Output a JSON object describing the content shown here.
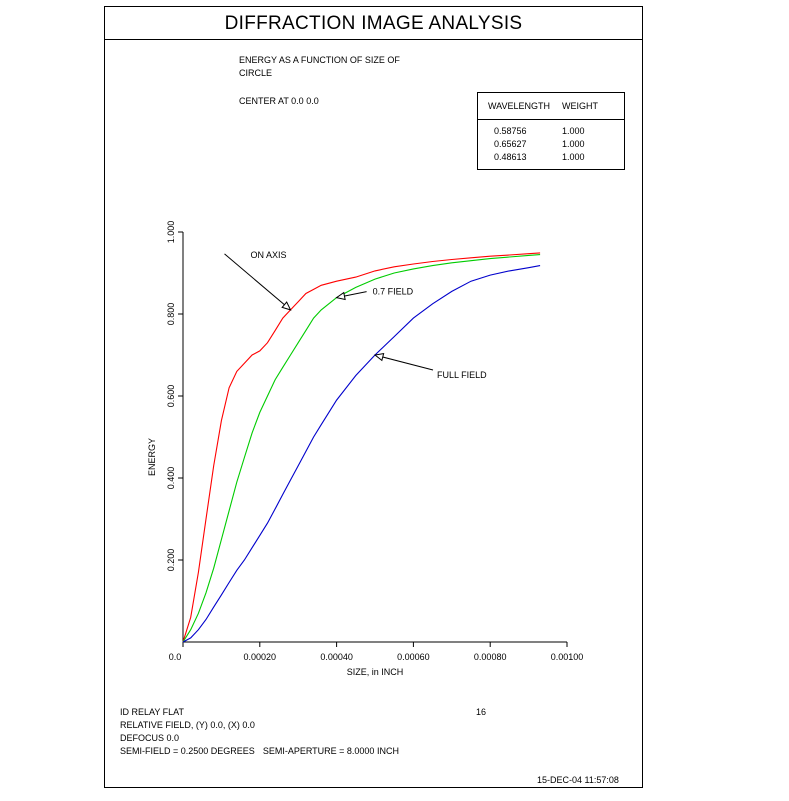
{
  "header": {
    "title": "DIFFRACTION IMAGE ANALYSIS"
  },
  "subtitle": {
    "line1": "ENERGY AS A FUNCTION OF SIZE OF",
    "line2": "CIRCLE",
    "center": "CENTER AT  0.0 0.0"
  },
  "wavelength_table": {
    "headers": [
      "WAVELENGTH",
      "WEIGHT"
    ],
    "rows": [
      {
        "wavelength": "0.58756",
        "weight": "1.000"
      },
      {
        "wavelength": "0.65627",
        "weight": "1.000"
      },
      {
        "wavelength": "0.48613",
        "weight": "1.000"
      }
    ]
  },
  "footer": {
    "system": "ID RELAY FLAT",
    "page": "16",
    "relative_field": "RELATIVE FIELD, (Y)  0.0, (X)  0.0",
    "defocus": "DEFOCUS  0.0",
    "semi_field": "SEMI-FIELD =  0.2500 DEGREES",
    "semi_aperture": "SEMI-APERTURE =  8.0000 INCH",
    "date": "15-DEC-04  11:57:08"
  },
  "colors": {
    "on_axis": "#ff0000",
    "field_07": "#00cc00",
    "full_field": "#0000cc",
    "axis": "#000000"
  },
  "chart_data": {
    "type": "line",
    "xlabel": "SIZE, in INCH",
    "ylabel": "ENERGY",
    "xlim": [
      0,
      0.001
    ],
    "ylim": [
      0,
      1.0
    ],
    "x_ticks": [
      0.0,
      0.0002,
      0.0004,
      0.0006,
      0.0008,
      0.001
    ],
    "x_tick_labels": [
      "0.0",
      "0.00020",
      "0.00040",
      "0.00060",
      "0.00080",
      "0.00100"
    ],
    "y_ticks": [
      0.2,
      0.4,
      0.6,
      0.8,
      1.0
    ],
    "y_tick_labels": [
      "0.200",
      "0.400",
      "0.600",
      "0.800",
      "1.000"
    ],
    "series": [
      {
        "name": "ON AXIS",
        "color": "#ff0000",
        "x": [
          0,
          2e-05,
          4e-05,
          6e-05,
          8e-05,
          0.0001,
          0.00012,
          0.00014,
          0.00016,
          0.00018,
          0.0002,
          0.00022,
          0.00024,
          0.00026,
          0.00028,
          0.0003,
          0.00032,
          0.00034,
          0.00036,
          0.0004,
          0.00045,
          0.0005,
          0.00055,
          0.0006,
          0.00065,
          0.0007,
          0.00075,
          0.0008,
          0.00085,
          0.0009,
          0.00093
        ],
        "y": [
          0,
          0.06,
          0.17,
          0.3,
          0.43,
          0.54,
          0.62,
          0.66,
          0.68,
          0.7,
          0.71,
          0.73,
          0.76,
          0.79,
          0.81,
          0.83,
          0.85,
          0.86,
          0.87,
          0.88,
          0.89,
          0.905,
          0.915,
          0.922,
          0.928,
          0.933,
          0.937,
          0.941,
          0.944,
          0.947,
          0.949
        ]
      },
      {
        "name": "0.7 FIELD",
        "color": "#00cc00",
        "x": [
          0,
          2e-05,
          4e-05,
          6e-05,
          8e-05,
          0.0001,
          0.00012,
          0.00014,
          0.00016,
          0.00018,
          0.0002,
          0.00022,
          0.00024,
          0.00026,
          0.00028,
          0.0003,
          0.00032,
          0.00034,
          0.00036,
          0.0004,
          0.00045,
          0.0005,
          0.00055,
          0.0006,
          0.00065,
          0.0007,
          0.00075,
          0.0008,
          0.00085,
          0.0009,
          0.00093
        ],
        "y": [
          0,
          0.03,
          0.07,
          0.12,
          0.18,
          0.25,
          0.32,
          0.39,
          0.45,
          0.51,
          0.56,
          0.6,
          0.64,
          0.67,
          0.7,
          0.73,
          0.76,
          0.79,
          0.81,
          0.84,
          0.865,
          0.885,
          0.9,
          0.91,
          0.918,
          0.925,
          0.93,
          0.935,
          0.939,
          0.943,
          0.945
        ]
      },
      {
        "name": "FULL FIELD",
        "color": "#0000cc",
        "x": [
          0,
          2e-05,
          4e-05,
          6e-05,
          8e-05,
          0.0001,
          0.00012,
          0.00014,
          0.00016,
          0.00018,
          0.0002,
          0.00022,
          0.00024,
          0.00026,
          0.00028,
          0.0003,
          0.00032,
          0.00034,
          0.00036,
          0.0004,
          0.00045,
          0.0005,
          0.00055,
          0.0006,
          0.00065,
          0.0007,
          0.00075,
          0.0008,
          0.00085,
          0.0009,
          0.00093
        ],
        "y": [
          0,
          0.01,
          0.03,
          0.055,
          0.085,
          0.115,
          0.145,
          0.175,
          0.2,
          0.23,
          0.26,
          0.29,
          0.325,
          0.36,
          0.395,
          0.43,
          0.465,
          0.5,
          0.53,
          0.59,
          0.65,
          0.7,
          0.745,
          0.79,
          0.825,
          0.855,
          0.88,
          0.895,
          0.905,
          0.913,
          0.918
        ]
      }
    ],
    "annotations": [
      {
        "text": "ON AXIS",
        "series": "ON AXIS",
        "at_x": 0.00028
      },
      {
        "text": "0.7 FIELD",
        "series": "0.7 FIELD",
        "at_x": 0.0004
      },
      {
        "text": "FULL FIELD",
        "series": "FULL FIELD",
        "at_x": 0.0005
      }
    ]
  }
}
